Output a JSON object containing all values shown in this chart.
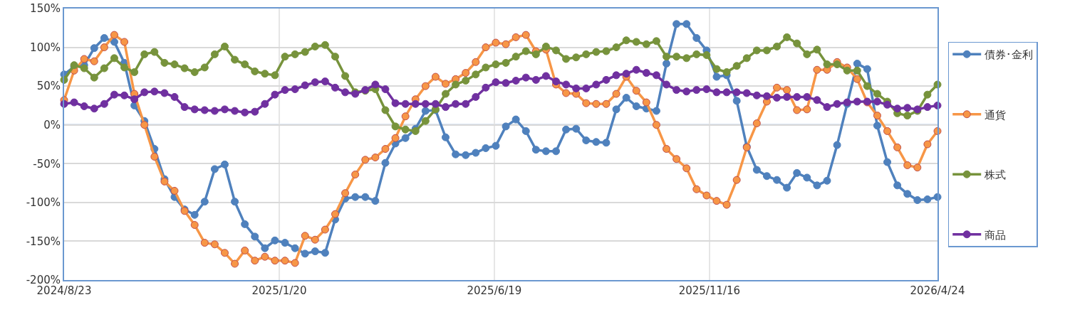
{
  "chart_data": {
    "type": "line",
    "marker": "circle",
    "line_style": "solid",
    "grid": true,
    "legend": "right",
    "x": [
      "2024-08-23",
      "2024-08-30",
      "2024-09-06",
      "2024-09-13",
      "2024-09-20",
      "2024-09-27",
      "2024-10-04",
      "2024-10-11",
      "2024-10-18",
      "2024-10-25",
      "2024-11-01",
      "2024-11-08",
      "2024-11-15",
      "2024-11-22",
      "2024-11-29",
      "2024-12-06",
      "2024-12-13",
      "2024-12-20",
      "2024-12-27",
      "2025-01-03",
      "2025-01-10",
      "2025-01-17",
      "2025-01-24",
      "2025-01-31",
      "2025-02-07",
      "2025-02-14",
      "2025-02-21",
      "2025-02-28",
      "2025-03-07",
      "2025-03-14",
      "2025-03-21",
      "2025-03-28",
      "2025-04-04",
      "2025-04-11",
      "2025-04-18",
      "2025-04-25",
      "2025-05-02",
      "2025-05-09",
      "2025-05-16",
      "2025-05-23",
      "2025-05-30",
      "2025-06-06",
      "2025-06-13",
      "2025-06-20",
      "2025-06-27",
      "2025-07-04",
      "2025-07-11",
      "2025-07-18",
      "2025-07-25",
      "2025-08-01",
      "2025-08-08",
      "2025-08-15",
      "2025-08-22",
      "2025-08-29",
      "2025-09-05",
      "2025-09-12",
      "2025-09-19",
      "2025-09-26",
      "2025-10-03",
      "2025-10-10",
      "2025-10-17",
      "2025-10-24",
      "2025-10-31",
      "2025-11-07",
      "2025-11-14",
      "2025-11-21",
      "2025-11-28",
      "2025-12-05",
      "2025-12-12",
      "2025-12-19",
      "2025-12-26",
      "2026-01-02",
      "2026-01-09",
      "2026-01-16",
      "2026-01-23",
      "2026-01-30",
      "2026-02-06",
      "2026-02-13",
      "2026-02-20",
      "2026-02-27",
      "2026-03-06",
      "2026-03-13",
      "2026-03-20",
      "2026-03-27",
      "2026-04-03",
      "2026-04-10",
      "2026-04-17",
      "2026-04-24"
    ],
    "xlim": [
      "2024-08-23",
      "2026-04-24"
    ],
    "xticks": [
      {
        "value": "2024-08-23",
        "label": "2024/8/23"
      },
      {
        "value": "2025-01-20",
        "label": "2025/1/20"
      },
      {
        "value": "2025-06-19",
        "label": "2025/6/19"
      },
      {
        "value": "2025-11-16",
        "label": "2025/11/16"
      },
      {
        "value": "2026-04-24",
        "label": "2026/4/24"
      }
    ],
    "ylim": [
      -200,
      150
    ],
    "ref_lines": [
      {
        "axis": "y",
        "value": 0,
        "color": "#6b98d0"
      }
    ],
    "yticks": [
      {
        "value": -200,
        "label": "-200%"
      },
      {
        "value": -150,
        "label": "-150%"
      },
      {
        "value": -100,
        "label": "-100%"
      },
      {
        "value": -50,
        "label": "-50%"
      },
      {
        "value": 0,
        "label": "0%"
      },
      {
        "value": 50,
        "label": "50%"
      },
      {
        "value": 100,
        "label": "100%"
      },
      {
        "value": 150,
        "label": "150%"
      }
    ],
    "series": [
      {
        "name": "債券･金利",
        "color": "#4f81bd",
        "values": [
          65,
          75,
          77,
          99,
          112,
          107,
          80,
          25,
          5,
          -31,
          -70,
          -93,
          -109,
          -116,
          -99,
          -57,
          -51,
          -99,
          -128,
          -144,
          -159,
          -149,
          -152,
          -159,
          -166,
          -163,
          -165,
          -122,
          -95,
          -93,
          -93,
          -98,
          -49,
          -24,
          -17,
          -5,
          18,
          19,
          -16,
          -38,
          -39,
          -36,
          -30,
          -27,
          -2,
          7,
          -8,
          -32,
          -34,
          -34,
          -6,
          -5,
          -20,
          -22,
          -23,
          20,
          35,
          24,
          21,
          18,
          79,
          130,
          130,
          112,
          96,
          62,
          64,
          31,
          -28,
          -58,
          -66,
          -71,
          -81,
          -62,
          -68,
          -78,
          -72,
          -26,
          27,
          79,
          72,
          -1,
          -48,
          -78,
          -89,
          -97,
          -96,
          -93
        ]
      },
      {
        "name": "通貨",
        "color": "#f79646",
        "values": [
          32,
          70,
          85,
          82,
          100,
          116,
          107,
          40,
          0,
          -41,
          -73,
          -85,
          -111,
          -129,
          -152,
          -154,
          -165,
          -179,
          -162,
          -175,
          -170,
          -175,
          -175,
          -178,
          -143,
          -148,
          -135,
          -115,
          -88,
          -64,
          -45,
          -42,
          -31,
          -17,
          11,
          33,
          50,
          62,
          53,
          59,
          67,
          81,
          100,
          106,
          104,
          113,
          116,
          95,
          97,
          52,
          41,
          40,
          28,
          27,
          27,
          40,
          62,
          44,
          29,
          0,
          -31,
          -44,
          -56,
          -83,
          -91,
          -98,
          -103,
          -71,
          -29,
          2,
          30,
          48,
          45,
          19,
          20,
          71,
          71,
          81,
          74,
          59,
          29,
          12,
          -8,
          -29,
          -52,
          -55,
          -25,
          -8
        ]
      },
      {
        "name": "株式",
        "color": "#77933c",
        "values": [
          58,
          77,
          73,
          61,
          73,
          86,
          74,
          68,
          91,
          94,
          80,
          78,
          73,
          68,
          74,
          91,
          101,
          84,
          78,
          69,
          66,
          64,
          88,
          91,
          94,
          101,
          103,
          88,
          63,
          42,
          44,
          46,
          19,
          -2,
          -6,
          -8,
          5,
          20,
          40,
          52,
          57,
          65,
          74,
          78,
          80,
          88,
          95,
          91,
          101,
          96,
          85,
          87,
          91,
          94,
          95,
          100,
          109,
          107,
          104,
          108,
          88,
          88,
          86,
          91,
          90,
          72,
          68,
          76,
          86,
          96,
          96,
          101,
          113,
          105,
          91,
          97,
          78,
          78,
          70,
          70,
          50,
          40,
          30,
          15,
          12,
          18,
          39,
          52
        ]
      },
      {
        "name": "商品",
        "color": "#7030a0",
        "values": [
          27,
          29,
          24,
          21,
          27,
          39,
          38,
          33,
          42,
          43,
          41,
          36,
          23,
          20,
          19,
          18,
          20,
          18,
          16,
          17,
          27,
          39,
          45,
          46,
          51,
          55,
          56,
          48,
          42,
          40,
          45,
          52,
          46,
          28,
          27,
          27,
          27,
          27,
          23,
          27,
          27,
          36,
          48,
          55,
          54,
          57,
          61,
          58,
          63,
          56,
          52,
          47,
          47,
          52,
          58,
          64,
          66,
          71,
          67,
          64,
          52,
          45,
          43,
          45,
          46,
          42,
          42,
          42,
          41,
          38,
          37,
          35,
          36,
          36,
          36,
          32,
          23,
          27,
          29,
          30,
          30,
          30,
          26,
          21,
          22,
          20,
          23,
          25
        ]
      }
    ]
  }
}
